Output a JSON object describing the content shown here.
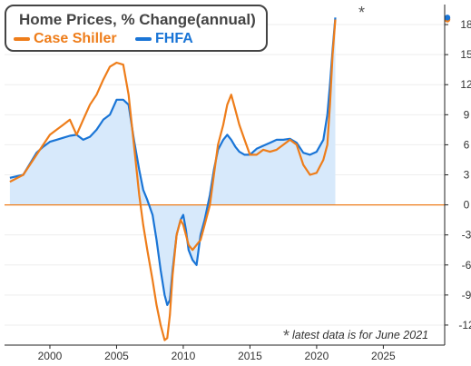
{
  "chart_data": {
    "type": "area",
    "title": "Home Prices, % Change",
    "title_suffix": "(annual)",
    "note": "latest data is for June 2021",
    "note_marker": "*",
    "latest_marker": "*",
    "xlim": [
      1996.6,
      2029.6
    ],
    "ylim": [
      -14,
      20
    ],
    "xticks": [
      2000,
      2005,
      2010,
      2015,
      2020,
      2025
    ],
    "yticks": [
      18,
      15,
      12,
      9,
      6,
      3,
      0,
      -3,
      -6,
      -9,
      -12
    ],
    "y_axis_position": "right",
    "zero_line": true,
    "colors": {
      "case_shiller": "#ee7d1a",
      "fhfa": "#1a75d6",
      "fhfa_fill": "#d7e9fb",
      "zero_line": "#ee7d1a"
    },
    "series": [
      {
        "key": "case_shiller",
        "name": "Case Shiller",
        "x": [
          1997.0,
          1998.0,
          1999.0,
          1999.5,
          2000.0,
          2000.5,
          2001.0,
          2001.5,
          2002.0,
          2002.5,
          2003.0,
          2003.5,
          2004.0,
          2004.5,
          2005.0,
          2005.5,
          2005.9,
          2006.3,
          2006.7,
          2007.0,
          2007.3,
          2007.7,
          2008.0,
          2008.3,
          2008.6,
          2008.8,
          2009.0,
          2009.2,
          2009.5,
          2009.8,
          2010.0,
          2010.2,
          2010.4,
          2010.7,
          2011.0,
          2011.3,
          2011.6,
          2012.0,
          2012.3,
          2012.6,
          2013.0,
          2013.3,
          2013.6,
          2013.9,
          2014.2,
          2014.6,
          2015.0,
          2015.5,
          2016.0,
          2016.5,
          2017.0,
          2017.5,
          2018.0,
          2018.5,
          2019.0,
          2019.5,
          2020.0,
          2020.5,
          2020.8,
          2021.0,
          2021.2,
          2021.4
        ],
        "values": [
          2.3,
          3.0,
          5.0,
          6.0,
          7.0,
          7.5,
          8.0,
          8.5,
          7.0,
          8.5,
          10.0,
          11.0,
          12.5,
          13.8,
          14.2,
          14.0,
          11.0,
          6.0,
          1.0,
          -2.0,
          -4.5,
          -7.5,
          -10.0,
          -12.0,
          -13.5,
          -13.3,
          -11.0,
          -7.0,
          -3.0,
          -1.5,
          -2.0,
          -3.0,
          -4.0,
          -4.5,
          -4.0,
          -3.5,
          -2.0,
          0.0,
          3.0,
          6.0,
          8.0,
          10.0,
          11.0,
          9.5,
          8.0,
          6.5,
          5.0,
          5.0,
          5.5,
          5.3,
          5.5,
          6.0,
          6.5,
          6.0,
          4.0,
          3.0,
          3.2,
          4.5,
          6.0,
          10.0,
          15.0,
          18.5
        ]
      },
      {
        "key": "fhfa",
        "name": "FHFA",
        "x": [
          1997.0,
          1998.0,
          1999.0,
          1999.5,
          2000.0,
          2000.5,
          2001.0,
          2001.5,
          2002.0,
          2002.5,
          2003.0,
          2003.5,
          2004.0,
          2004.5,
          2005.0,
          2005.5,
          2005.9,
          2006.3,
          2006.7,
          2007.0,
          2007.3,
          2007.7,
          2008.0,
          2008.3,
          2008.6,
          2008.8,
          2009.0,
          2009.2,
          2009.5,
          2009.8,
          2010.0,
          2010.2,
          2010.4,
          2010.7,
          2011.0,
          2011.3,
          2011.6,
          2012.0,
          2012.3,
          2012.6,
          2013.0,
          2013.3,
          2013.6,
          2013.9,
          2014.2,
          2014.6,
          2015.0,
          2015.5,
          2016.0,
          2016.5,
          2017.0,
          2017.5,
          2018.0,
          2018.5,
          2019.0,
          2019.5,
          2020.0,
          2020.5,
          2020.8,
          2021.0,
          2021.2,
          2021.4
        ],
        "values": [
          2.7,
          3.0,
          5.2,
          5.8,
          6.3,
          6.5,
          6.7,
          6.9,
          7.0,
          6.5,
          6.8,
          7.5,
          8.5,
          9.0,
          10.5,
          10.5,
          10.0,
          6.5,
          3.5,
          1.5,
          0.5,
          -1.0,
          -3.5,
          -6.5,
          -9.0,
          -10.0,
          -9.5,
          -6.5,
          -3.0,
          -1.5,
          -1.0,
          -2.5,
          -4.5,
          -5.5,
          -6.0,
          -3.0,
          -1.5,
          1.0,
          3.5,
          5.5,
          6.5,
          7.0,
          6.5,
          5.8,
          5.3,
          5.0,
          5.0,
          5.6,
          5.9,
          6.2,
          6.5,
          6.5,
          6.6,
          6.2,
          5.2,
          5.0,
          5.3,
          6.5,
          9.0,
          12.0,
          15.5,
          18.7
        ]
      }
    ]
  }
}
